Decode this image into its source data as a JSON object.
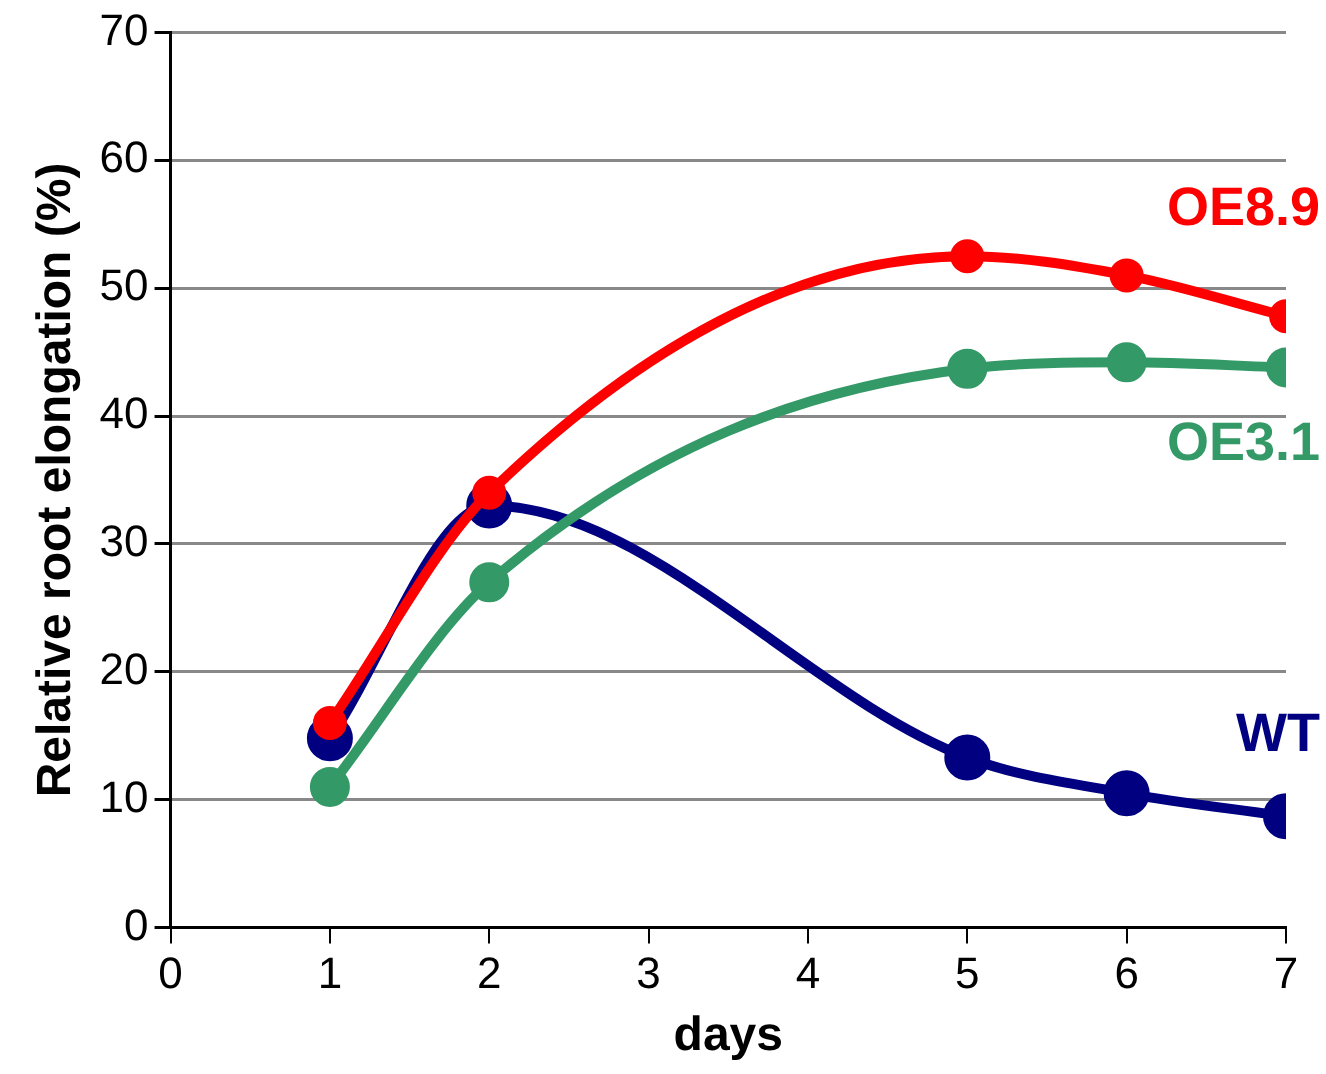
{
  "chart_data": {
    "type": "line",
    "xlabel": "days",
    "ylabel": "Relative root elongation (%)",
    "x": [
      1,
      2,
      5,
      6,
      7
    ],
    "series": [
      {
        "name": "OE8.9",
        "color": "#ff0000",
        "values": [
          16,
          34,
          52.5,
          51,
          47.8
        ]
      },
      {
        "name": "OE3.1",
        "color": "#339966",
        "values": [
          11,
          27,
          43.7,
          44.2,
          43.8
        ]
      },
      {
        "name": "WT",
        "color": "#000080",
        "values": [
          14.8,
          33,
          13.3,
          10.5,
          8.7
        ]
      }
    ],
    "xlim": [
      0,
      7
    ],
    "xticks": [
      0,
      1,
      2,
      3,
      4,
      5,
      6,
      7
    ],
    "ylim": [
      0,
      70
    ],
    "yticks": [
      0,
      10,
      20,
      30,
      40,
      50,
      60,
      70
    ],
    "grid": "y",
    "legend": false,
    "marker": "circle",
    "line_style": "solid"
  }
}
